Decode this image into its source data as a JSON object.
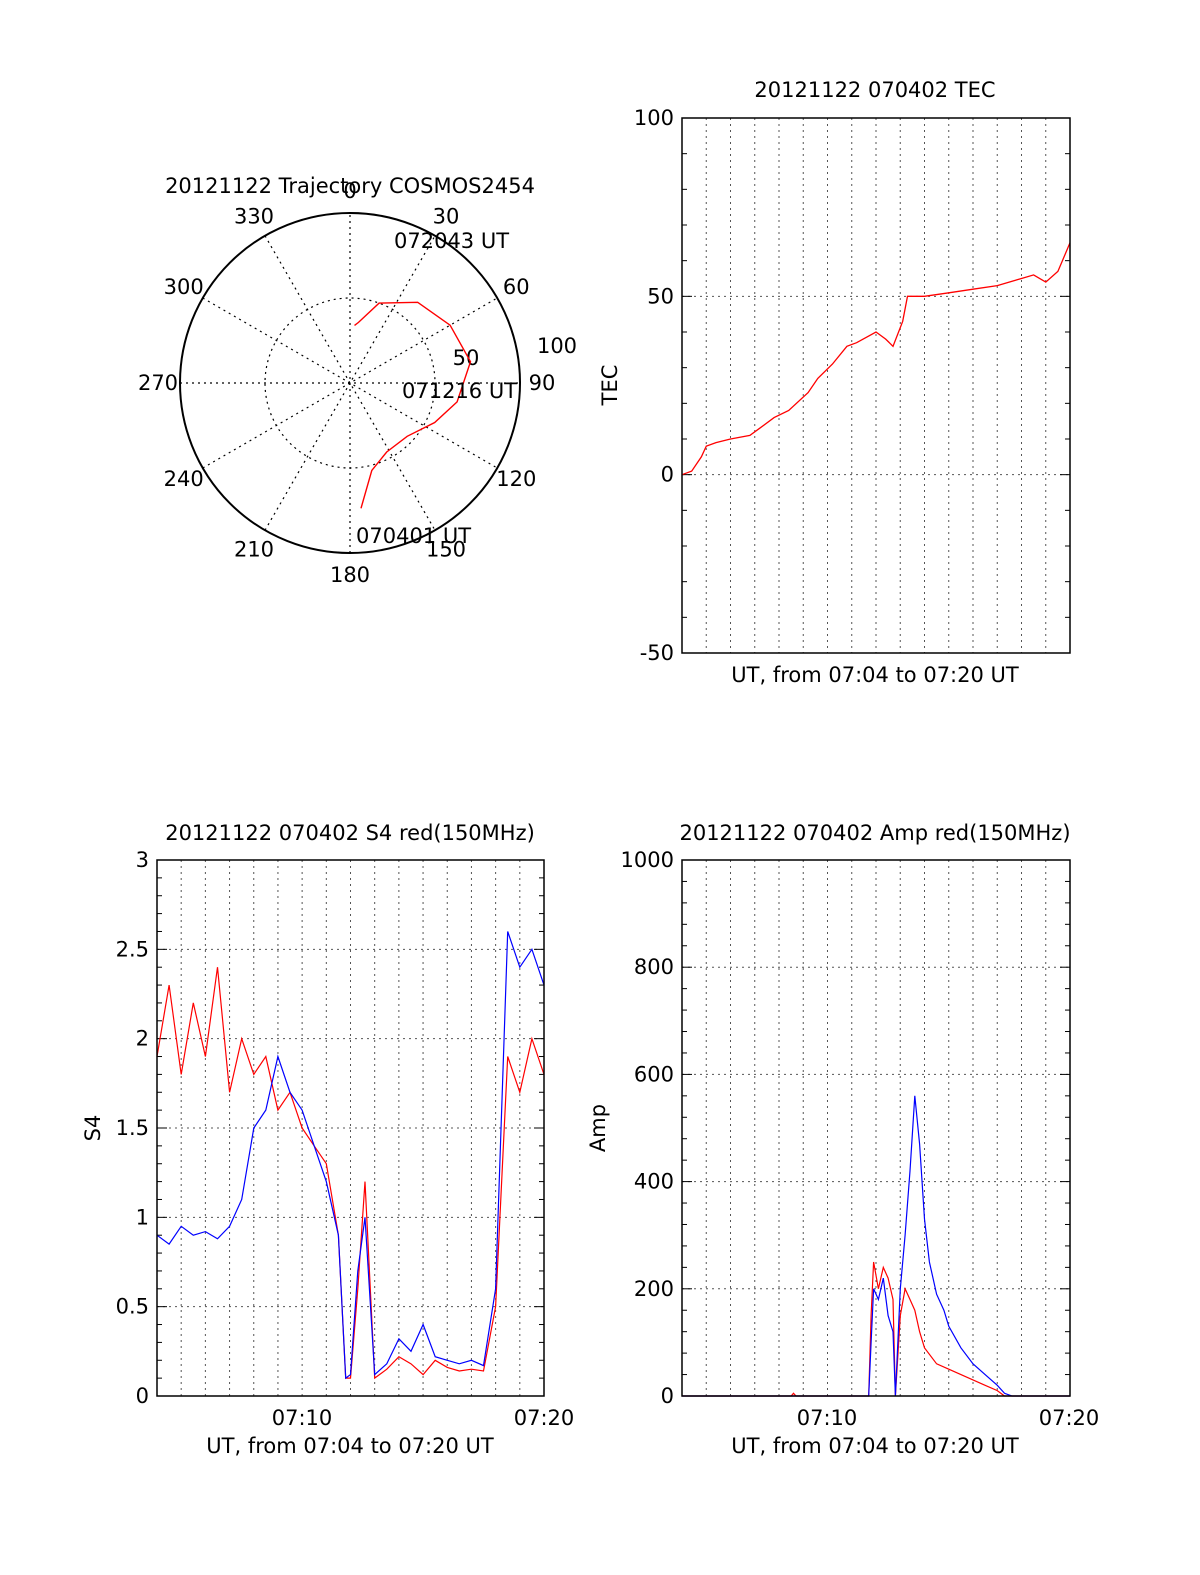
{
  "colors": {
    "red": "#ff0000",
    "blue": "#0000ff",
    "axis": "#000000",
    "grid": "#555555"
  },
  "chart_data": [
    {
      "type": "scatter",
      "subtype": "polar-trajectory",
      "title": "20121122 Trajectory COSMOS2454",
      "angle_labels": [
        "0",
        "30",
        "60",
        "90",
        "120",
        "150",
        "180",
        "210",
        "240",
        "270",
        "300",
        "330"
      ],
      "radial_labels": [
        "50",
        "100"
      ],
      "rlim": [
        0,
        100
      ],
      "grid": true,
      "annotations": [
        "072043 UT",
        "071216 UT",
        "070401 UT"
      ],
      "series": [
        {
          "color": "#ff0000",
          "points": [
            {
              "az": 4.5,
              "zen": 34
            },
            {
              "az": 8,
              "zen": 36
            },
            {
              "az": 20,
              "zen": 50
            },
            {
              "az": 40,
              "zen": 62
            },
            {
              "az": 60,
              "zen": 68
            },
            {
              "az": 80,
              "zen": 72
            },
            {
              "az": 100,
              "zen": 64
            },
            {
              "az": 115,
              "zen": 55
            },
            {
              "az": 133,
              "zen": 46
            },
            {
              "az": 152,
              "zen": 46
            },
            {
              "az": 166,
              "zen": 53
            },
            {
              "az": 175,
              "zen": 74
            }
          ]
        }
      ]
    },
    {
      "type": "line",
      "title": "20121122 070402 TEC",
      "xlabel": "UT, from 07:04 to 07:20 UT",
      "ylabel": "TEC",
      "xlim": [
        0,
        16
      ],
      "ylim": [
        -50,
        100
      ],
      "yticks": [
        "100",
        "50",
        "0",
        "-50"
      ],
      "grid": true,
      "series": [
        {
          "color": "#ff0000",
          "x": [
            0,
            0.4,
            0.8,
            1.0,
            1.4,
            2.0,
            2.8,
            3.2,
            3.8,
            4.4,
            5.2,
            5.6,
            6.2,
            6.8,
            7.2,
            8.0,
            8.4,
            8.7,
            9.1,
            9.3,
            10,
            11,
            12,
            13,
            14,
            14.5,
            15,
            15.5,
            16
          ],
          "y": [
            0,
            1,
            5,
            8,
            9,
            10,
            11,
            13,
            16,
            18,
            23,
            27,
            31,
            36,
            37,
            40,
            38,
            36,
            43,
            50,
            50,
            51,
            52,
            53,
            55,
            56,
            54,
            57,
            65
          ]
        }
      ]
    },
    {
      "type": "line",
      "title": "20121122 070402 S4 red(150MHz)",
      "xlabel": "UT, from 07:04 to 07:20 UT",
      "ylabel": "S4",
      "xlim": [
        0,
        16
      ],
      "ylim": [
        0,
        3
      ],
      "yticks": [
        "3",
        "2.5",
        "2",
        "1.5",
        "1",
        "0.5",
        "0"
      ],
      "xticks": [
        "07:10",
        "07:20"
      ],
      "grid": true,
      "series": [
        {
          "color": "#ff0000",
          "x": [
            0,
            0.5,
            1,
            1.5,
            2,
            2.5,
            3,
            3.5,
            4,
            4.5,
            5,
            5.5,
            6,
            6.5,
            7,
            7.5,
            7.8,
            8,
            8.3,
            8.6,
            9,
            9.5,
            10,
            10.5,
            11,
            11.5,
            12,
            12.5,
            13,
            13.5,
            14,
            14.5,
            15,
            15.5,
            16
          ],
          "y": [
            1.9,
            2.3,
            1.8,
            2.2,
            1.9,
            2.4,
            1.7,
            2.0,
            1.8,
            1.9,
            1.6,
            1.7,
            1.5,
            1.4,
            1.3,
            0.9,
            0.1,
            0.1,
            0.6,
            1.2,
            0.1,
            0.15,
            0.22,
            0.18,
            0.12,
            0.2,
            0.16,
            0.14,
            0.15,
            0.14,
            0.5,
            1.9,
            1.7,
            2.0,
            1.8
          ]
        },
        {
          "color": "#0000ff",
          "x": [
            0,
            0.5,
            1,
            1.5,
            2,
            2.5,
            3,
            3.5,
            4,
            4.5,
            5,
            5.5,
            6,
            6.5,
            7,
            7.5,
            7.8,
            8,
            8.3,
            8.6,
            9,
            9.5,
            10,
            10.5,
            11,
            11.5,
            12,
            12.5,
            13,
            13.5,
            14,
            14.5,
            15,
            15.5,
            16
          ],
          "y": [
            0.9,
            0.85,
            0.95,
            0.9,
            0.92,
            0.88,
            0.95,
            1.1,
            1.5,
            1.6,
            1.9,
            1.7,
            1.6,
            1.4,
            1.2,
            0.9,
            0.1,
            0.12,
            0.7,
            1.0,
            0.12,
            0.18,
            0.32,
            0.25,
            0.4,
            0.22,
            0.2,
            0.18,
            0.2,
            0.17,
            0.6,
            2.6,
            2.4,
            2.5,
            2.3
          ]
        }
      ]
    },
    {
      "type": "line",
      "title": "20121122 070402 Amp red(150MHz)",
      "xlabel": "UT, from 07:04 to 07:20 UT",
      "ylabel": "Amp",
      "xlim": [
        0,
        16
      ],
      "ylim": [
        0,
        1000
      ],
      "yticks": [
        "1000",
        "800",
        "600",
        "400",
        "200",
        "0"
      ],
      "xticks": [
        "07:10",
        "07:20"
      ],
      "grid": true,
      "series": [
        {
          "color": "#ff0000",
          "x": [
            0,
            4.5,
            4.6,
            4.7,
            7.7,
            7.8,
            7.9,
            8.1,
            8.3,
            8.5,
            8.7,
            8.8,
            9.0,
            9.2,
            9.4,
            9.6,
            9.8,
            10.0,
            10.5,
            11.0,
            11.5,
            12,
            12.5,
            13.0,
            13.3,
            13.6,
            16
          ],
          "y": [
            0,
            0,
            5,
            0,
            0,
            150,
            250,
            200,
            240,
            220,
            180,
            0,
            150,
            200,
            180,
            160,
            120,
            90,
            60,
            50,
            40,
            30,
            20,
            10,
            0,
            0,
            0
          ]
        },
        {
          "color": "#0000ff",
          "x": [
            0,
            7.7,
            7.8,
            7.9,
            8.1,
            8.3,
            8.5,
            8.7,
            8.8,
            9.0,
            9.2,
            9.4,
            9.6,
            9.8,
            10.0,
            10.2,
            10.5,
            10.8,
            11.0,
            11.5,
            12,
            12.5,
            13.0,
            13.3,
            13.6,
            16
          ],
          "y": [
            0,
            0,
            100,
            200,
            180,
            220,
            150,
            120,
            0,
            200,
            300,
            420,
            560,
            470,
            330,
            250,
            190,
            160,
            130,
            90,
            60,
            40,
            20,
            5,
            0,
            0
          ]
        }
      ]
    }
  ]
}
